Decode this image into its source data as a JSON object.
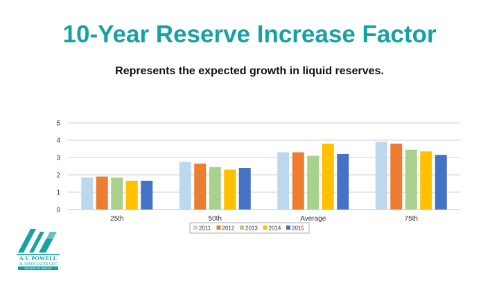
{
  "slide": {
    "title": "10-Year Reserve Increase Factor",
    "subtitle": "Represents the expected growth in liquid reserves.",
    "title_color": "#17a2a2"
  },
  "logo": {
    "company": "A.V. POWELL",
    "line2": "& ASSOCIATES LLC",
    "tagline": "DECADES OF SERVICE",
    "mark": "AVP",
    "color": "#17a2a2"
  },
  "chart_data": {
    "type": "bar",
    "categories": [
      "25th",
      "50th",
      "Average",
      "75th"
    ],
    "series": [
      {
        "name": "2011",
        "color": "#bdd7ee",
        "values": [
          1.85,
          2.75,
          3.3,
          3.9
        ]
      },
      {
        "name": "2012",
        "color": "#ed7d31",
        "values": [
          1.9,
          2.65,
          3.3,
          3.8
        ]
      },
      {
        "name": "2013",
        "color": "#a9d18e",
        "values": [
          1.85,
          2.45,
          3.1,
          3.45
        ]
      },
      {
        "name": "2014",
        "color": "#ffc000",
        "values": [
          1.65,
          2.3,
          3.8,
          3.35
        ]
      },
      {
        "name": "2015",
        "color": "#4472c4",
        "values": [
          1.65,
          2.4,
          3.2,
          3.15
        ]
      }
    ],
    "y_ticks": [
      0,
      1,
      2,
      3,
      4,
      5
    ],
    "ylim": [
      0,
      5
    ],
    "grid": true,
    "legend": "bottom-center"
  }
}
